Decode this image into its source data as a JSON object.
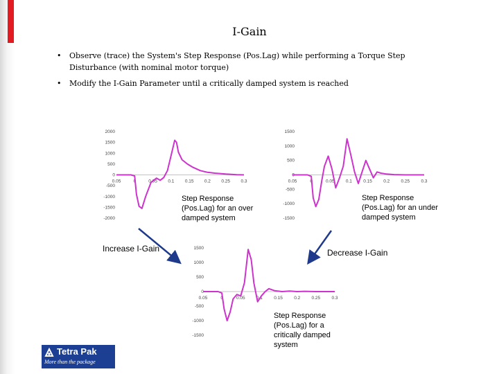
{
  "slide": {
    "title": "I-Gain",
    "bullets": [
      "Observe (trace) the System's Step Response (Pos.Lag) while performing a Torque Step Disturbance (with nominal motor torque)",
      "Modify the I-Gain Parameter until a critically damped system is reached"
    ]
  },
  "captions": {
    "over_damped": "Step Response (Pos.Lag) for an over damped system",
    "under_damped": "Step Response (Pos.Lag) for an under damped system",
    "critically_damped": "Step Response (Pos.Lag) for a critically damped system"
  },
  "arrows": {
    "increase": "Increase I-Gain",
    "decrease": "Decrease I-Gain"
  },
  "logo": {
    "name": "Tetra Pak",
    "tagline": "More than the package"
  },
  "colors": {
    "trace": "#cc33cc",
    "arrow": "#1f3a8a",
    "accent_red": "#e21b23",
    "logo_blue": "#1c3f94"
  },
  "chart_data": [
    {
      "type": "line",
      "name_hint": "over-damped",
      "y_ticks": [
        "2000",
        "1500",
        "1000",
        "500",
        "0",
        "-500",
        "-1000",
        "-1500",
        "-2000"
      ],
      "x_ticks": [
        "0.05",
        "0",
        "0.05",
        "0.1",
        "0.15",
        "0.2",
        "0.25",
        "0.3"
      ],
      "xlim": [
        -0.05,
        0.3
      ],
      "ylim": [
        -2000,
        2000
      ],
      "x": [
        -0.05,
        -0.02,
        -0.01,
        0.0,
        0.005,
        0.012,
        0.02,
        0.03,
        0.045,
        0.06,
        0.07,
        0.08,
        0.09,
        0.1,
        0.11,
        0.115,
        0.12,
        0.13,
        0.145,
        0.16,
        0.18,
        0.2,
        0.22,
        0.25,
        0.28,
        0.3
      ],
      "y": [
        0,
        0,
        0,
        -50,
        -900,
        -1450,
        -1550,
        -1000,
        -350,
        -150,
        -250,
        -120,
        200,
        900,
        1600,
        1500,
        1050,
        700,
        500,
        350,
        200,
        120,
        80,
        40,
        10,
        0
      ]
    },
    {
      "type": "line",
      "name_hint": "under-damped",
      "y_ticks": [
        "1500",
        "1000",
        "500",
        "0",
        "-500",
        "-1000",
        "-1500"
      ],
      "x_ticks": [
        "0.05",
        "0",
        "0.05",
        "0.1",
        "0.15",
        "0.2",
        "0.25",
        "0.3"
      ],
      "xlim": [
        -0.05,
        0.3
      ],
      "ylim": [
        -1500,
        1500
      ],
      "x": [
        -0.05,
        -0.02,
        -0.01,
        0.0,
        0.005,
        0.012,
        0.02,
        0.028,
        0.035,
        0.045,
        0.055,
        0.065,
        0.075,
        0.085,
        0.095,
        0.105,
        0.115,
        0.125,
        0.135,
        0.145,
        0.155,
        0.165,
        0.175,
        0.185,
        0.2,
        0.22,
        0.25,
        0.3
      ],
      "y": [
        0,
        0,
        0,
        -50,
        -800,
        -1100,
        -850,
        -200,
        300,
        650,
        200,
        -450,
        -100,
        300,
        1250,
        700,
        100,
        -300,
        100,
        500,
        200,
        -100,
        100,
        60,
        30,
        10,
        0,
        0
      ]
    },
    {
      "type": "line",
      "name_hint": "critically-damped",
      "y_ticks": [
        "1500",
        "1000",
        "500",
        "0",
        "-500",
        "-1000",
        "-1500"
      ],
      "x_ticks": [
        "0.05",
        "0",
        "0.05",
        "0.1",
        "0.15",
        "0.2",
        "0.25",
        "0.3"
      ],
      "xlim": [
        -0.05,
        0.3
      ],
      "ylim": [
        -1500,
        1500
      ],
      "x": [
        -0.05,
        -0.02,
        -0.01,
        0.0,
        0.006,
        0.014,
        0.022,
        0.03,
        0.04,
        0.05,
        0.06,
        0.07,
        0.078,
        0.085,
        0.095,
        0.105,
        0.115,
        0.125,
        0.14,
        0.16,
        0.18,
        0.2,
        0.22,
        0.25,
        0.3
      ],
      "y": [
        0,
        0,
        0,
        -50,
        -600,
        -1000,
        -700,
        -250,
        -100,
        -150,
        300,
        1450,
        1100,
        300,
        -350,
        -150,
        0,
        100,
        30,
        0,
        20,
        0,
        10,
        0,
        0
      ]
    }
  ]
}
